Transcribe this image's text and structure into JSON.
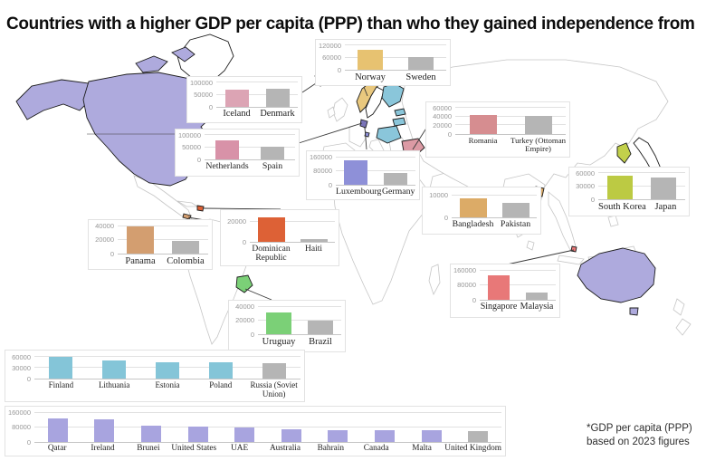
{
  "title": "Countries with a higher GDP per capita (PPP) than who they gained independence from",
  "footnote": {
    "line1": "*GDP per capita (PPP)",
    "line2": "based on 2023 figures"
  },
  "map": {
    "colors": {
      "commonwealth": "#aeaadd",
      "ex_soviet": "#8ac6da",
      "norway": "#e9c87e",
      "iceland": "#dca4b4",
      "romania": "#dc9aa4",
      "uruguay": "#7bd077",
      "south_korea": "#c2d04b",
      "netherlands": "#7a74b8",
      "luxembourg": "#8e90d8",
      "singapore": "#e87878",
      "dominican": "#dd6136",
      "panama": "#d39e70",
      "bangladesh": "#dcab67"
    },
    "highlighted": [
      "Canada",
      "United States",
      "Australia",
      "Norway",
      "Iceland",
      "Finland",
      "Estonia",
      "Lithuania",
      "Poland",
      "Romania",
      "Netherlands",
      "Luxembourg",
      "Uruguay",
      "South Korea",
      "Singapore",
      "Dominican Republic",
      "Panama",
      "Bangladesh",
      "Qatar",
      "UAE",
      "Bahrain"
    ]
  },
  "chart_data": [
    {
      "id": "norway-sweden",
      "type": "bar",
      "categories": [
        "Norway",
        "Sweden"
      ],
      "values": [
        100000,
        63000
      ],
      "colors": [
        "#e7c271",
        "#b5b5b5"
      ],
      "yticks": [
        0,
        60000,
        120000
      ],
      "ylim": [
        0,
        126000
      ],
      "ylabel": "",
      "xlabel": "",
      "grid": true
    },
    {
      "id": "iceland-denmark",
      "type": "bar",
      "categories": [
        "Iceland",
        "Denmark"
      ],
      "values": [
        70000,
        74000
      ],
      "colors": [
        "#dca4b4",
        "#b5b5b5"
      ],
      "yticks": [
        0,
        50000,
        100000
      ],
      "ylim": [
        0,
        105000
      ],
      "grid": true
    },
    {
      "id": "netherlands-spain",
      "type": "bar",
      "categories": [
        "Netherlands",
        "Spain"
      ],
      "values": [
        78000,
        52000
      ],
      "colors": [
        "#d892a8",
        "#b5b5b5"
      ],
      "yticks": [
        0,
        50000,
        100000
      ],
      "ylim": [
        0,
        105000
      ],
      "grid": true
    },
    {
      "id": "romania-turkey",
      "type": "bar",
      "categories": [
        "Romania",
        "Turkey (Ottoman Empire)"
      ],
      "values": [
        45000,
        42000
      ],
      "colors": [
        "#d68d90",
        "#b5b5b5"
      ],
      "yticks": [
        0,
        20000,
        40000,
        60000
      ],
      "ylim": [
        0,
        63000
      ],
      "grid": true
    },
    {
      "id": "luxembourg-germany",
      "type": "bar",
      "categories": [
        "Luxembourg",
        "Germany"
      ],
      "values": [
        143000,
        67000
      ],
      "colors": [
        "#8e90d8",
        "#b5b5b5"
      ],
      "yticks": [
        0,
        80000,
        160000
      ],
      "ylim": [
        0,
        168000
      ],
      "grid": true
    },
    {
      "id": "south-korea-japan",
      "type": "bar",
      "categories": [
        "South Korea",
        "Japan"
      ],
      "values": [
        54000,
        50000
      ],
      "colors": [
        "#bcca43",
        "#b5b5b5"
      ],
      "yticks": [
        0,
        30000,
        60000
      ],
      "ylim": [
        0,
        63000
      ],
      "grid": true
    },
    {
      "id": "bangladesh-pakistan",
      "type": "bar",
      "categories": [
        "Bangladesh",
        "Pakistan"
      ],
      "values": [
        8700,
        6400
      ],
      "colors": [
        "#dcab67",
        "#b5b5b5"
      ],
      "yticks": [
        0,
        10000
      ],
      "ylim": [
        0,
        11500
      ],
      "grid": true
    },
    {
      "id": "dominican-haiti",
      "type": "bar",
      "categories": [
        "Dominican Republic",
        "Haiti"
      ],
      "values": [
        24000,
        3000
      ],
      "colors": [
        "#dd6136",
        "#b5b5b5"
      ],
      "yticks": [
        0,
        20000
      ],
      "ylim": [
        0,
        27000
      ],
      "grid": true
    },
    {
      "id": "panama-colombia",
      "type": "bar",
      "categories": [
        "Panama",
        "Colombia"
      ],
      "values": [
        39000,
        19000
      ],
      "colors": [
        "#d39e70",
        "#b5b5b5"
      ],
      "yticks": [
        0,
        20000,
        40000
      ],
      "ylim": [
        0,
        42000
      ],
      "grid": true
    },
    {
      "id": "uruguay-brazil",
      "type": "bar",
      "categories": [
        "Uruguay",
        "Brazil"
      ],
      "values": [
        31000,
        20000
      ],
      "colors": [
        "#7bd077",
        "#b5b5b5"
      ],
      "yticks": [
        0,
        20000,
        40000
      ],
      "ylim": [
        0,
        42000
      ],
      "grid": true
    },
    {
      "id": "singapore-malaysia",
      "type": "bar",
      "categories": [
        "Singapore",
        "Malaysia"
      ],
      "values": [
        133000,
        38000
      ],
      "colors": [
        "#e87878",
        "#b5b5b5"
      ],
      "yticks": [
        0,
        80000,
        160000
      ],
      "ylim": [
        0,
        168000
      ],
      "grid": true
    },
    {
      "id": "ex-soviet",
      "type": "bar",
      "categories": [
        "Finland",
        "Lithuania",
        "Estonia",
        "Poland",
        "Russia (Soviet Union)"
      ],
      "values": [
        60000,
        50000,
        46000,
        45000,
        43000
      ],
      "colors": [
        "#84c5d8",
        "#84c5d8",
        "#84c5d8",
        "#84c5d8",
        "#b5b5b5"
      ],
      "yticks": [
        0,
        30000,
        60000
      ],
      "ylim": [
        0,
        66000
      ],
      "grid": true
    },
    {
      "id": "ex-uk",
      "type": "bar",
      "categories": [
        "Qatar",
        "Ireland",
        "Brunei",
        "United States",
        "UAE",
        "Australia",
        "Bahrain",
        "Canada",
        "Malta",
        "United Kingdom"
      ],
      "values": [
        128000,
        124000,
        88000,
        83000,
        78000,
        71000,
        66000,
        64000,
        64000,
        57000
      ],
      "colors": [
        "#a8a4df",
        "#a8a4df",
        "#a8a4df",
        "#a8a4df",
        "#a8a4df",
        "#a8a4df",
        "#a8a4df",
        "#a8a4df",
        "#a8a4df",
        "#b5b5b5"
      ],
      "yticks": [
        0,
        80000,
        160000
      ],
      "ylim": [
        0,
        168000
      ],
      "grid": true
    }
  ]
}
